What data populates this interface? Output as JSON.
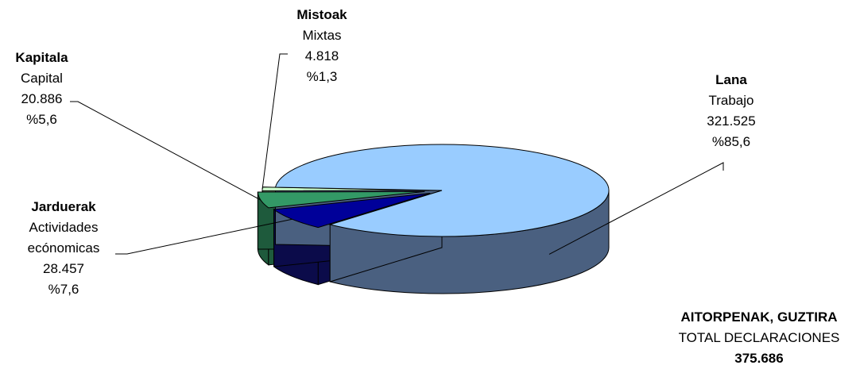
{
  "chart_data": {
    "type": "pie",
    "slices": [
      {
        "key": "lana",
        "name_eu": "Lana",
        "name_es": "Trabajo",
        "value_label": "321.525",
        "value": 321525,
        "percent_label": "%85,6",
        "percent": 85.6,
        "top_color": "#99CCFF",
        "side_color": "#4A6080"
      },
      {
        "key": "jarduerak",
        "name_eu": "Jarduerak",
        "name_es_line1": "Actividades",
        "name_es_line2": "ecónomicas",
        "value_label": "28.457",
        "value": 28457,
        "percent_label": "%7,6",
        "percent": 7.6,
        "top_color": "#000099",
        "side_color": "#0B0B4A"
      },
      {
        "key": "kapitala",
        "name_eu": "Kapitala",
        "name_es": "Capital",
        "value_label": "20.886",
        "value": 20886,
        "percent_label": "%5,6",
        "percent": 5.6,
        "top_color": "#339966",
        "side_color": "#1E5A3C"
      },
      {
        "key": "mistoak",
        "name_eu": "Mistoak",
        "name_es": "Mixtas",
        "value_label": "4.818",
        "value": 4818,
        "percent_label": "%1,3",
        "percent": 1.3,
        "top_color": "#CCFFCC",
        "side_color": "#7A997A"
      }
    ],
    "total": {
      "title": "AITORPENAK, GUZTIRA",
      "subtitle": "TOTAL DECLARACIONES",
      "value_label": "375.686",
      "value": 375686
    }
  }
}
